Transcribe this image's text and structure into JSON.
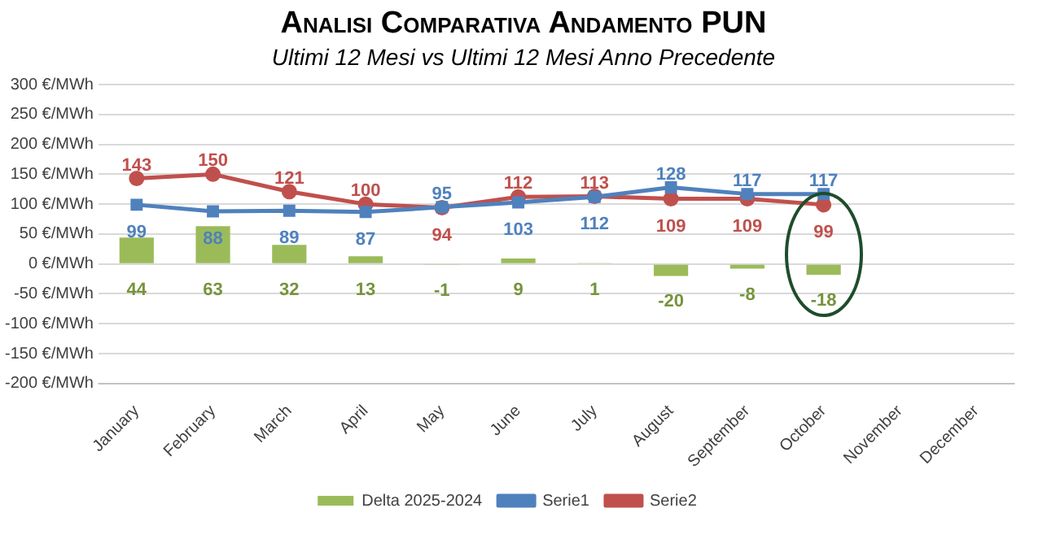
{
  "chart_data": {
    "type": "bar",
    "title": "Analisi Comparativa Andamento PUN",
    "subtitle": "Ultimi 12 Mesi vs Ultimi 12 Mesi Anno Precedente",
    "categories": [
      "January",
      "February",
      "March",
      "April",
      "May",
      "June",
      "July",
      "August",
      "September",
      "October",
      "November",
      "December"
    ],
    "series": [
      {
        "name": "Delta 2025-2024",
        "color": "#9bbb59",
        "values": [
          44,
          63,
          32,
          13,
          -1,
          9,
          1,
          -20,
          -8,
          -18,
          null,
          null
        ]
      },
      {
        "name": "Serie1",
        "type": "line",
        "color": "#4f81bd",
        "marker": "square",
        "values": [
          99,
          88,
          89,
          87,
          95,
          103,
          112,
          128,
          117,
          117,
          null,
          null
        ]
      },
      {
        "name": "Serie2",
        "type": "line",
        "color": "#c0504d",
        "marker": "circle",
        "values": [
          143,
          150,
          121,
          100,
          94,
          112,
          113,
          109,
          109,
          99,
          null,
          null
        ]
      }
    ],
    "ylim": [
      -200,
      300
    ],
    "yticks": [
      {
        "value": -200,
        "label": "-200 €/MWh"
      },
      {
        "value": -150,
        "label": "-150 €/MWh"
      },
      {
        "value": -100,
        "label": "-100 €/MWh"
      },
      {
        "value": -50,
        "label": "-50 €/MWh"
      },
      {
        "value": 0,
        "label": "0 €/MWh"
      },
      {
        "value": 50,
        "label": "50 €/MWh"
      },
      {
        "value": 100,
        "label": "100 €/MWh"
      },
      {
        "value": 150,
        "label": "150 €/MWh"
      },
      {
        "value": 200,
        "label": "200 €/MWh"
      },
      {
        "value": 250,
        "label": "250 €/MWh"
      },
      {
        "value": 300,
        "label": "300 €/MWh"
      }
    ],
    "grid": "y",
    "legend": "bottom",
    "data_labels": true
  }
}
